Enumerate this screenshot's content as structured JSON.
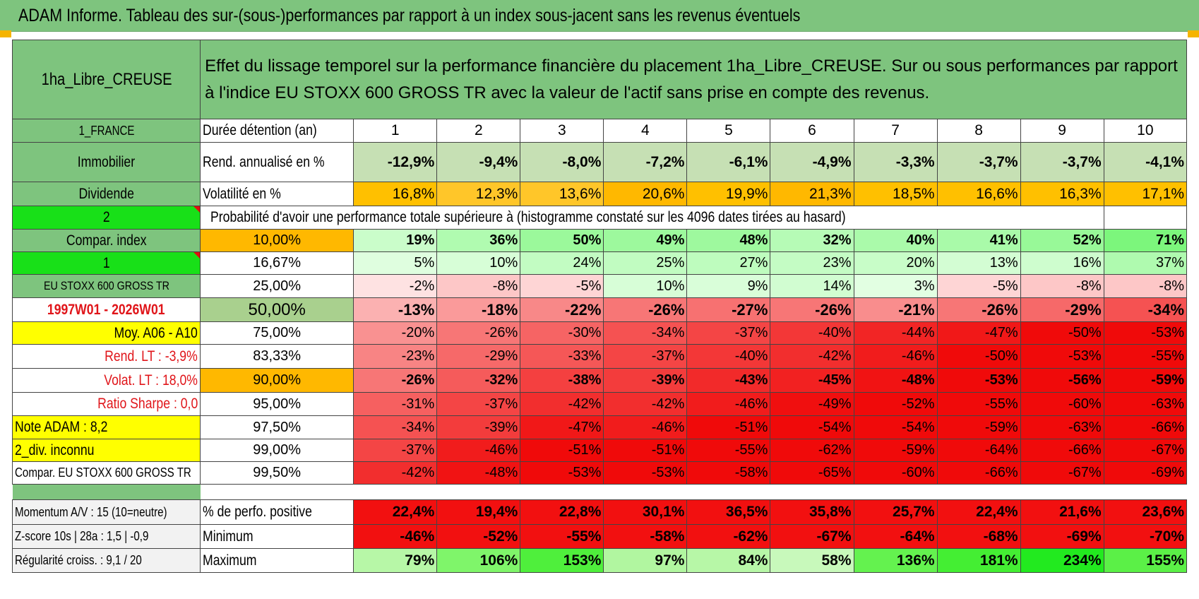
{
  "title": "ADAM Informe. Tableau des sur-(sous-)performances par rapport à un index sous-jacent sans les revenus éventuels",
  "header": {
    "fund_name": "1ha_Libre_CREUSE",
    "description": "Effet du lissage temporel sur la performance financière du placement 1ha_Libre_CREUSE. Sur ou sous performances par rapport à l'indice EU STOXX 600 GROSS TR avec la valeur de l'actif sans prise en compte des revenus."
  },
  "left_panel": {
    "country": "1_FRANCE",
    "category": "Immobilier",
    "type": "Dividende",
    "selector_1": "2",
    "compar_index": "Compar. index",
    "selector_2": "1",
    "index_name": "EU STOXX 600 GROSS TR",
    "period": "1997W01 - 2026W01",
    "moy": "Moy. A06 - A10",
    "rend_lt": "Rend. LT :    -3,9%",
    "volat_lt": "Volat. LT :    18,0%",
    "sharpe": "Ratio Sharpe :     0,0",
    "note": "Note ADAM : 8,2",
    "div": "2_div. inconnu",
    "compar_full": "Compar. EU STOXX 600 GROSS TR",
    "momentum": "Momentum A/V : 15 (10=neutre)",
    "zscore": "Z-score 10s | 28a : 1,5 | -0,9",
    "regularite": "Régularité croiss. : 9,1 / 20"
  },
  "row_labels": {
    "duration": "Durée détention (an)",
    "rend": "Rend. annualisé en %",
    "vol": "Volatilité en %",
    "proba": "Probabilité d'avoir une performance totale supérieure à (histogramme constaté sur les 4096 dates tirées au hasard)",
    "pct_pos": "% de perfo. positive",
    "min": "Minimum",
    "max": "Maximum"
  },
  "years": [
    "1",
    "2",
    "3",
    "4",
    "5",
    "6",
    "7",
    "8",
    "9",
    "10"
  ],
  "rend": [
    "-12,9%",
    "-9,4%",
    "-8,0%",
    "-7,2%",
    "-6,1%",
    "-4,9%",
    "-3,3%",
    "-3,7%",
    "-3,7%",
    "-4,1%"
  ],
  "vol": [
    "16,8%",
    "12,3%",
    "13,6%",
    "20,6%",
    "19,9%",
    "21,3%",
    "18,5%",
    "16,6%",
    "16,3%",
    "17,1%"
  ],
  "quantiles": [
    {
      "q": "10,00%",
      "vals": [
        "19%",
        "36%",
        "50%",
        "49%",
        "48%",
        "32%",
        "40%",
        "41%",
        "52%",
        "71%"
      ]
    },
    {
      "q": "16,67%",
      "vals": [
        "5%",
        "10%",
        "24%",
        "25%",
        "27%",
        "23%",
        "20%",
        "13%",
        "16%",
        "37%"
      ]
    },
    {
      "q": "25,00%",
      "vals": [
        "-2%",
        "-8%",
        "-5%",
        "10%",
        "9%",
        "14%",
        "3%",
        "-5%",
        "-8%",
        "-8%"
      ]
    },
    {
      "q": "50,00%",
      "vals": [
        "-13%",
        "-18%",
        "-22%",
        "-26%",
        "-27%",
        "-26%",
        "-21%",
        "-26%",
        "-29%",
        "-34%"
      ]
    },
    {
      "q": "75,00%",
      "vals": [
        "-20%",
        "-26%",
        "-30%",
        "-34%",
        "-37%",
        "-40%",
        "-44%",
        "-47%",
        "-50%",
        "-53%"
      ]
    },
    {
      "q": "83,33%",
      "vals": [
        "-23%",
        "-29%",
        "-33%",
        "-37%",
        "-40%",
        "-42%",
        "-46%",
        "-50%",
        "-53%",
        "-55%"
      ]
    },
    {
      "q": "90,00%",
      "vals": [
        "-26%",
        "-32%",
        "-38%",
        "-39%",
        "-43%",
        "-45%",
        "-48%",
        "-53%",
        "-56%",
        "-59%"
      ]
    },
    {
      "q": "95,00%",
      "vals": [
        "-31%",
        "-37%",
        "-42%",
        "-42%",
        "-46%",
        "-49%",
        "-52%",
        "-55%",
        "-60%",
        "-63%"
      ]
    },
    {
      "q": "97,50%",
      "vals": [
        "-34%",
        "-39%",
        "-47%",
        "-46%",
        "-51%",
        "-54%",
        "-54%",
        "-59%",
        "-63%",
        "-66%"
      ]
    },
    {
      "q": "99,00%",
      "vals": [
        "-37%",
        "-46%",
        "-51%",
        "-51%",
        "-55%",
        "-62%",
        "-59%",
        "-64%",
        "-66%",
        "-67%"
      ]
    },
    {
      "q": "99,50%",
      "vals": [
        "-42%",
        "-48%",
        "-53%",
        "-53%",
        "-58%",
        "-65%",
        "-60%",
        "-66%",
        "-67%",
        "-69%"
      ]
    }
  ],
  "pct_pos": [
    "22,4%",
    "19,4%",
    "22,8%",
    "30,1%",
    "36,5%",
    "35,8%",
    "25,7%",
    "22,4%",
    "21,6%",
    "23,6%"
  ],
  "minimum": [
    "-46%",
    "-52%",
    "-55%",
    "-58%",
    "-62%",
    "-67%",
    "-64%",
    "-68%",
    "-69%",
    "-70%"
  ],
  "maximum": [
    "79%",
    "106%",
    "153%",
    "97%",
    "84%",
    "58%",
    "136%",
    "181%",
    "234%",
    "155%"
  ],
  "colors": {
    "header_green": "#7ec47e",
    "bright_green": "#18e018",
    "yellow": "#ffff00",
    "orange": "#ffb800",
    "red_text": "#e0151a"
  }
}
